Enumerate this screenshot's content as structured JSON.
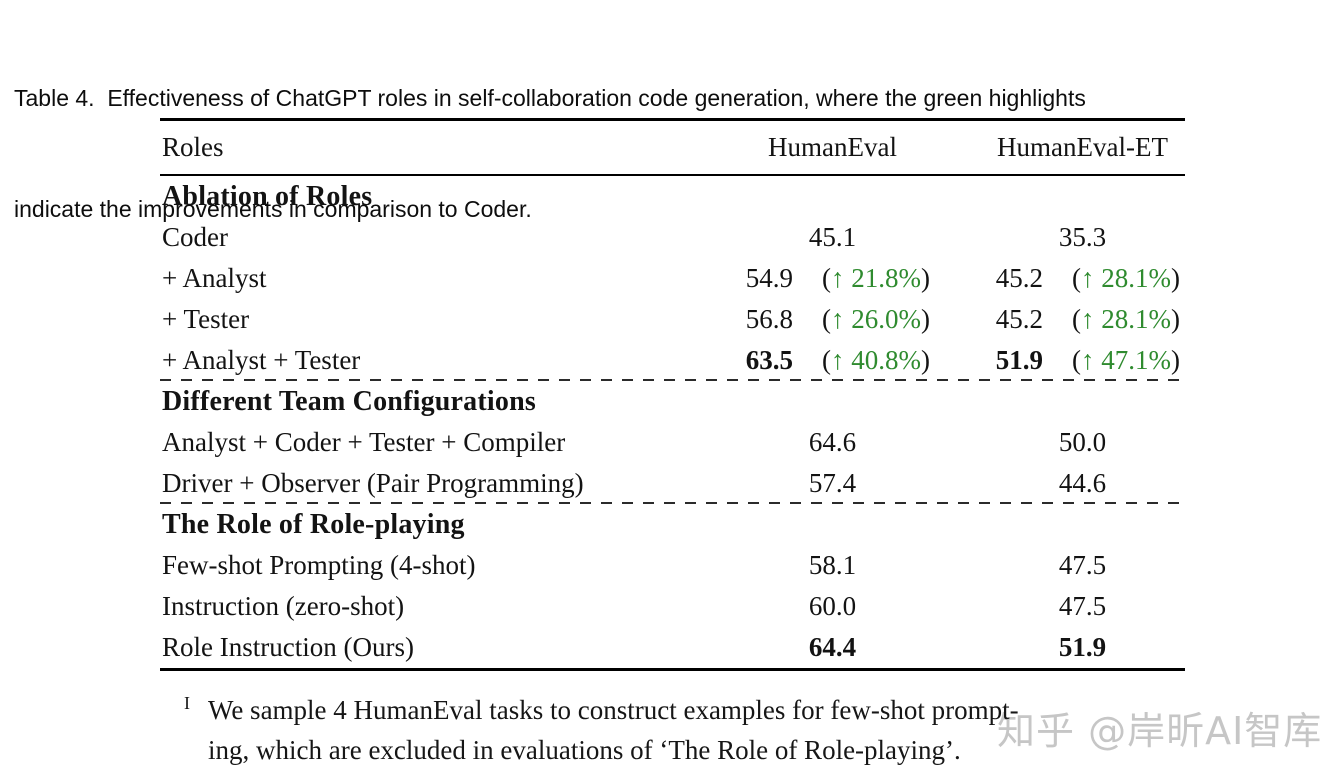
{
  "caption": {
    "line1": "Table 4.  Effectiveness of ChatGPT roles in self-collaboration code generation, where the green highlights",
    "line2": "indicate the improvements in comparison to Coder."
  },
  "colors": {
    "improvement_green": "#2f8b2f",
    "watermark_gray": "#c6c6c6"
  },
  "chart_data": {
    "type": "table",
    "title": "Effectiveness of ChatGPT roles in self-collaboration code generation",
    "columns": [
      "Roles",
      "HumanEval",
      "HumanEval-ET"
    ],
    "sections": [
      {
        "header": "Ablation of Roles",
        "rows": [
          {
            "role": "Coder",
            "humaneval": 45.1,
            "humaneval_et": 35.3
          },
          {
            "role": "+ Analyst",
            "humaneval": 54.9,
            "humaneval_improvement": "21.8%",
            "humaneval_et": 45.2,
            "humaneval_et_improvement": "28.1%"
          },
          {
            "role": "+ Tester",
            "humaneval": 56.8,
            "humaneval_improvement": "26.0%",
            "humaneval_et": 45.2,
            "humaneval_et_improvement": "28.1%"
          },
          {
            "role": "+ Analyst + Tester",
            "humaneval": 63.5,
            "humaneval_improvement": "40.8%",
            "humaneval_et": 51.9,
            "humaneval_et_improvement": "47.1%",
            "bold": true
          }
        ]
      },
      {
        "header": "Different Team Configurations",
        "rows": [
          {
            "role": "Analyst + Coder + Tester + Compiler",
            "humaneval": 64.6,
            "humaneval_et": 50.0
          },
          {
            "role": "Driver + Observer (Pair Programming)",
            "humaneval": 57.4,
            "humaneval_et": 44.6
          }
        ]
      },
      {
        "header": "The Role of Role-playing",
        "rows": [
          {
            "role": "Few-shot Prompting (4-shot)",
            "humaneval": 58.1,
            "humaneval_et": 47.5
          },
          {
            "role": "Instruction (zero-shot)",
            "humaneval": 60.0,
            "humaneval_et": 47.5
          },
          {
            "role": "Role Instruction (Ours)",
            "humaneval": 64.4,
            "humaneval_et": 51.9,
            "bold": true
          }
        ]
      }
    ]
  },
  "table": {
    "header": {
      "roles": "Roles",
      "col1": "HumanEval",
      "col2": "HumanEval-ET"
    },
    "paren_open": "(",
    "paren_close": ")",
    "rows": [
      {
        "label": "Ablation of Roles"
      },
      {
        "label": "Coder",
        "c1": {
          "v": "45.1"
        },
        "c2": {
          "v": "35.3"
        }
      },
      {
        "label": "+ Analyst",
        "c1": {
          "v": "54.9",
          "a": "↑ 21.8%"
        },
        "c2": {
          "v": "45.2",
          "a": "↑ 28.1%"
        }
      },
      {
        "label": "+ Tester",
        "c1": {
          "v": "56.8",
          "a": "↑ 26.0%"
        },
        "c2": {
          "v": "45.2",
          "a": "↑ 28.1%"
        }
      },
      {
        "label": "+ Analyst + Tester",
        "c1": {
          "v": "63.5",
          "a": "↑ 40.8%"
        },
        "c2": {
          "v": "51.9",
          "a": "↑ 47.1%"
        }
      },
      {
        "label": "Different Team Configurations"
      },
      {
        "label": "Analyst + Coder + Tester + Compiler",
        "c1": {
          "v": "64.6"
        },
        "c2": {
          "v": "50.0"
        }
      },
      {
        "label": "Driver + Observer (Pair Programming)",
        "c1": {
          "v": "57.4"
        },
        "c2": {
          "v": "44.6"
        }
      },
      {
        "label": "The Role of Role-playing"
      },
      {
        "label": "Few-shot Prompting (4-shot)",
        "c1": {
          "v": "58.1"
        },
        "c2": {
          "v": "47.5"
        }
      },
      {
        "label": "Instruction (zero-shot)",
        "c1": {
          "v": "60.0"
        },
        "c2": {
          "v": "47.5"
        }
      },
      {
        "label": "Role Instruction (Ours)",
        "c1": {
          "v": "64.4"
        },
        "c2": {
          "v": "51.9"
        }
      }
    ]
  },
  "footnote": {
    "marker": "I",
    "line1": "We sample 4 HumanEval tasks to construct examples for few-shot prompt-",
    "line2": "ing, which are excluded in evaluations of ‘The Role of Role-playing’."
  },
  "watermark": "知乎 @岸昕AI智库"
}
